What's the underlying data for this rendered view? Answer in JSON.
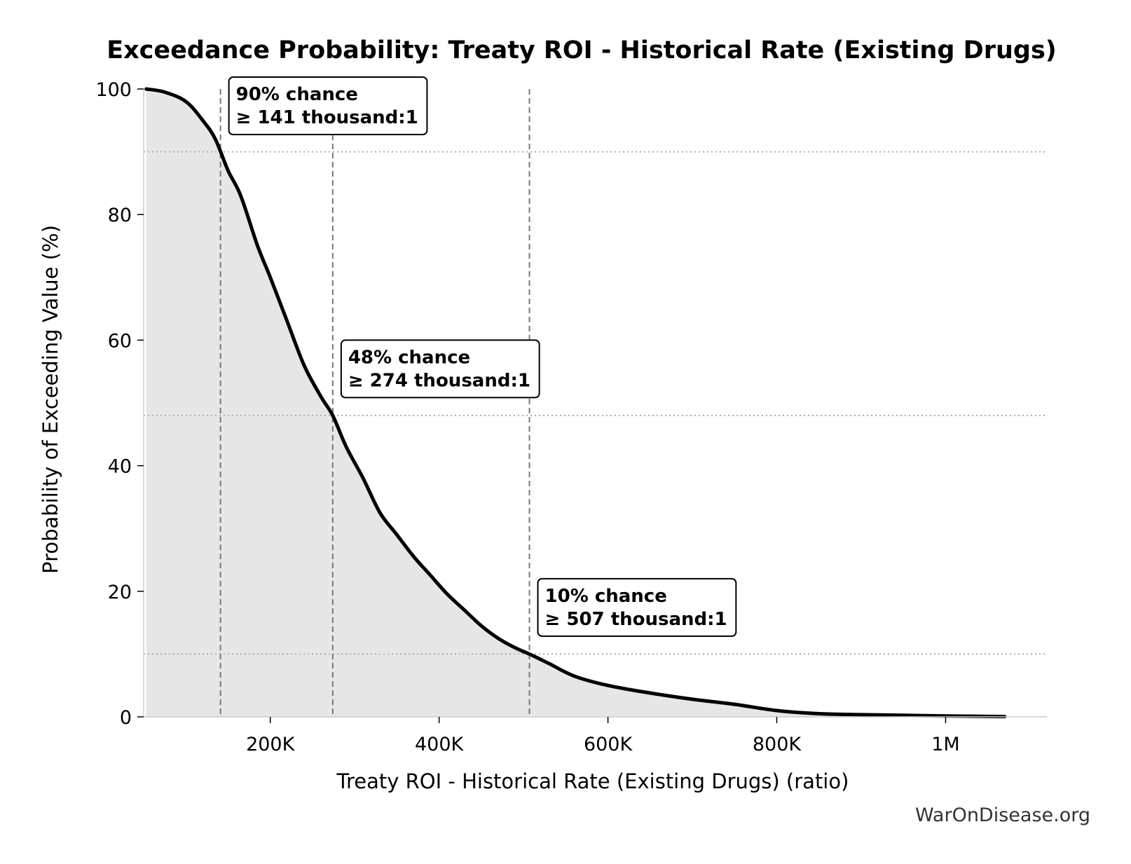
{
  "chart_data": {
    "type": "area",
    "title": "Exceedance Probability: Treaty ROI - Historical Rate (Existing Drugs)",
    "xlabel": "Treaty ROI - Historical Rate (Existing Drugs) (ratio)",
    "ylabel": "Probability of Exceeding Value (%)",
    "xlim": [
      50000,
      1120000
    ],
    "ylim": [
      0,
      100
    ],
    "x_ticks": [
      {
        "value": 200000,
        "label": "200K"
      },
      {
        "value": 400000,
        "label": "400K"
      },
      {
        "value": 600000,
        "label": "600K"
      },
      {
        "value": 800000,
        "label": "800K"
      },
      {
        "value": 1000000,
        "label": "1M"
      }
    ],
    "y_ticks": [
      {
        "value": 0,
        "label": "0"
      },
      {
        "value": 20,
        "label": "20"
      },
      {
        "value": 40,
        "label": "40"
      },
      {
        "value": 60,
        "label": "60"
      },
      {
        "value": 80,
        "label": "80"
      },
      {
        "value": 100,
        "label": "100"
      }
    ],
    "series": [
      {
        "x": [
          53000,
          75000,
          100000,
          120000,
          135000,
          150000,
          165000,
          185000,
          200000,
          220000,
          240000,
          260000,
          274000,
          290000,
          310000,
          330000,
          350000,
          370000,
          390000,
          410000,
          430000,
          450000,
          470000,
          490000,
          507000,
          530000,
          560000,
          600000,
          650000,
          700000,
          750000,
          800000,
          850000,
          900000,
          950000,
          1000000,
          1070000
        ],
        "y": [
          100,
          99.5,
          98,
          95,
          92,
          87,
          83,
          75,
          70,
          63,
          56,
          51,
          48,
          43,
          38,
          32.5,
          29,
          25.5,
          22.5,
          19.5,
          17,
          14.5,
          12.5,
          11,
          10,
          8.5,
          6.5,
          5,
          3.8,
          2.8,
          2,
          1,
          0.5,
          0.35,
          0.25,
          0.15,
          0.05
        ]
      }
    ],
    "thresholds": [
      {
        "x": 141000,
        "probability": 90,
        "line1": "90% chance",
        "line2": "≥ 141 thousand:1"
      },
      {
        "x": 274000,
        "probability": 48,
        "line1": "48% chance",
        "line2": "≥ 274 thousand:1"
      },
      {
        "x": 507000,
        "probability": 10,
        "line1": "10% chance",
        "line2": "≥ 507 thousand:1"
      }
    ],
    "colors": {
      "line": "#000000",
      "fill": "#e6e6e6",
      "reference": "#777777",
      "grid": "#aaaaaa"
    }
  },
  "footer": {
    "credit": "WarOnDisease.org"
  }
}
